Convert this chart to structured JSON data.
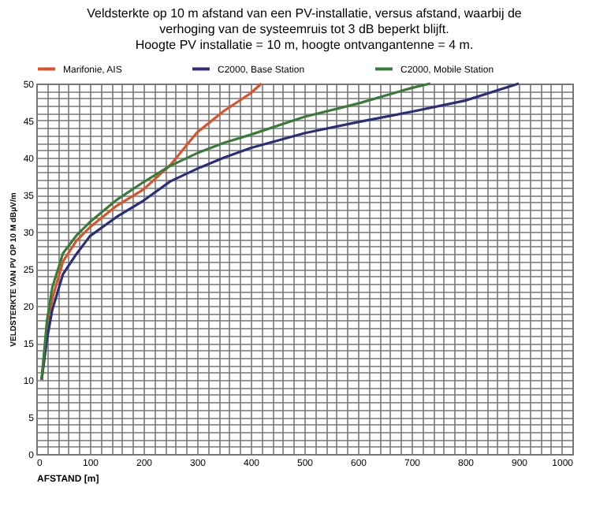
{
  "chart_data": {
    "type": "line",
    "title": [
      "Veldsterkte op 10 m afstand van een PV-installatie, versus afstand, waarbij de",
      "verhoging van de systeemruis tot 3 dB beperkt blijft.",
      "Hoogte PV installatie = 10 m,  hoogte ontvangantenne = 4 m."
    ],
    "xlabel": "AFSTAND  [m]",
    "ylabel": "VELDSTERKTE  VAN  PV  OP 10 M dBμV/m",
    "series": [
      {
        "name": "Marifonie, AIS",
        "color": "#d9532b",
        "x": [
          10,
          20,
          30,
          50,
          75,
          100,
          150,
          200,
          250,
          300,
          350,
          400,
          420
        ],
        "values": [
          10,
          17,
          21,
          26,
          28.8,
          30.6,
          33.5,
          35.7,
          39,
          43.4,
          46.3,
          48.7,
          50
        ]
      },
      {
        "name": "C2000, Base Station",
        "color": "#2b2f7a",
        "x": [
          10,
          20,
          30,
          50,
          75,
          100,
          150,
          200,
          250,
          300,
          350,
          400,
          500,
          600,
          700,
          800,
          900
        ],
        "values": [
          10,
          15.5,
          19.5,
          24.3,
          27,
          29.4,
          32,
          34.2,
          36.8,
          38.5,
          40,
          41.3,
          43.3,
          44.8,
          46.2,
          47.7,
          50
        ]
      },
      {
        "name": "C2000, Mobile Station",
        "color": "#3a7a3a",
        "x": [
          10,
          20,
          30,
          50,
          75,
          100,
          150,
          200,
          250,
          300,
          350,
          400,
          500,
          600,
          700,
          735
        ],
        "values": [
          10,
          18,
          22.5,
          27.1,
          29.5,
          31.3,
          34.3,
          36.7,
          38.9,
          40.6,
          42,
          43.1,
          45.5,
          47.3,
          49.4,
          50
        ]
      }
    ],
    "xlim": [
      0,
      1000
    ],
    "xticks": [
      0,
      100,
      200,
      300,
      400,
      500,
      600,
      700,
      800,
      900,
      1000
    ],
    "ylim": [
      0,
      50
    ],
    "yticks": [
      0,
      5,
      10,
      15,
      20,
      25,
      30,
      35,
      40,
      45,
      50
    ],
    "grid": true,
    "legend": "top",
    "marker": "none",
    "line_style": "solid"
  }
}
